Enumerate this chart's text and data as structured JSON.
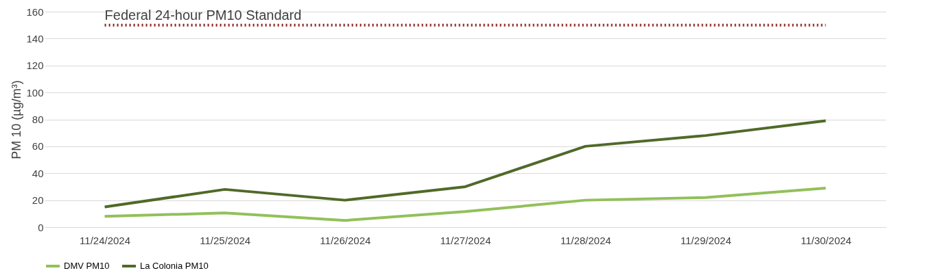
{
  "chart_data": {
    "type": "line",
    "ylabel": "PM 10 (µg/m³)",
    "categories": [
      "11/24/2024",
      "11/25/2024",
      "11/26/2024",
      "11/27/2024",
      "11/28/2024",
      "11/29/2024",
      "11/30/2024"
    ],
    "series": [
      {
        "name": "DMV PM10",
        "color": "#92c05a",
        "values": [
          8,
          10.5,
          5,
          11.5,
          20,
          22,
          29
        ]
      },
      {
        "name": "La Colonia PM10",
        "color": "#4f6a28",
        "values": [
          15,
          28,
          20,
          30,
          60,
          68,
          79
        ]
      }
    ],
    "ylim": [
      0,
      160
    ],
    "yticks": [
      0,
      20,
      40,
      60,
      80,
      100,
      120,
      140,
      160
    ],
    "ref_lines": [
      {
        "axis": "y",
        "value": 150,
        "label": "Federal 24-hour PM10 Standard",
        "color": "#8b1a1a",
        "line_style": "dotted"
      }
    ],
    "grid": "y",
    "legend": "bottom",
    "marker": "none",
    "line_style": "solid"
  }
}
